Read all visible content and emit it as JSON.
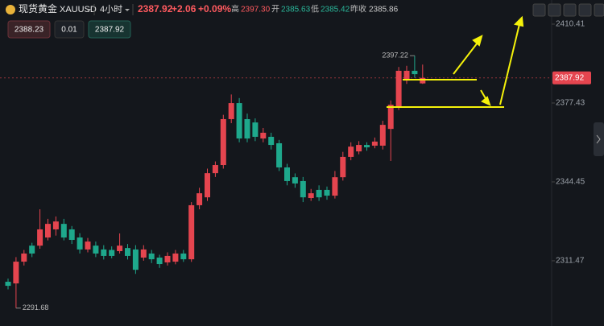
{
  "header": {
    "name": "现货黄金",
    "symbol": "XAUUSD",
    "interval": "4小时",
    "price": "2387.92",
    "change": "+2.06",
    "change_pct": "+0.09%",
    "high_label": "高",
    "high": "2397.30",
    "open_label": "开",
    "open": "2385.63",
    "low_label": "低",
    "low": "2385.42",
    "prev_label": "昨收",
    "prev": "2385.86"
  },
  "order": {
    "sell": "2388.23",
    "lots": "0.01",
    "buy": "2387.92"
  },
  "chart_data": {
    "type": "candlestick",
    "up_color": "#e5454f",
    "down_color": "#1ea88c",
    "open": [
      2302.7,
      2302.0,
      2311.1,
      2317.8,
      2317.8,
      2321.2,
      2324.6,
      2326.9,
      2324.6,
      2321.2,
      2316.2,
      2317.8,
      2316.2,
      2316.0,
      2315.5,
      2316.8,
      2316.2,
      2312.8,
      2314.5,
      2312.8,
      2310.8,
      2311.1,
      2314.5,
      2312.1,
      2334.7,
      2338.0,
      2348.1,
      2351.5,
      2370.7,
      2377.4,
      2370.7,
      2369.3,
      2362.6,
      2363.3,
      2360.6,
      2350.5,
      2346.4,
      2344.8,
      2337.7,
      2341.1,
      2341.1,
      2338.7,
      2346.4,
      2354.9,
      2357.2,
      2359.9,
      2359.6,
      2359.6,
      2366.6,
      2375.7,
      2386.8,
      2390.9,
      2385.63
    ],
    "high": [
      2304,
      2313,
      2316,
      2319,
      2333.0,
      2329,
      2330,
      2329,
      2326,
      2323,
      2321,
      2319.5,
      2318,
      2317.5,
      2322.9,
      2318.5,
      2318,
      2318,
      2316,
      2314,
      2315,
      2316,
      2316,
      2336,
      2342,
      2350,
      2353,
      2372.5,
      2381,
      2379.5,
      2373,
      2371,
      2367,
      2365,
      2362,
      2352,
      2348,
      2346.5,
      2341.5,
      2343,
      2342.5,
      2349,
      2357,
      2361,
      2361.5,
      2361,
      2363,
      2370,
      2378.5,
      2392.5,
      2393,
      2397.22,
      2393.5
    ],
    "low": [
      2299.5,
      2291.68,
      2309.5,
      2313,
      2316.5,
      2320,
      2322,
      2320,
      2318.5,
      2314.5,
      2315,
      2313,
      2312,
      2312.5,
      2314.5,
      2312,
      2306,
      2311.5,
      2310.5,
      2308.5,
      2309.5,
      2310,
      2311,
      2311,
      2333,
      2336.5,
      2346.5,
      2350,
      2369,
      2361,
      2361,
      2361.5,
      2361,
      2358,
      2349,
      2343,
      2342,
      2336,
      2336.5,
      2336.5,
      2337,
      2337.5,
      2345,
      2353.5,
      2356,
      2357.5,
      2358.5,
      2358,
      2353.2,
      2374.5,
      2385.42,
      2388,
      2385.42
    ],
    "close": [
      2301.0,
      2311.1,
      2314.5,
      2314.5,
      2324.6,
      2326.9,
      2327.9,
      2321.2,
      2320.2,
      2316.2,
      2319.5,
      2314.5,
      2313.5,
      2313.5,
      2317.8,
      2313.5,
      2307.7,
      2316.2,
      2312.1,
      2310.1,
      2313.5,
      2314.5,
      2312.1,
      2334.7,
      2339.7,
      2348.1,
      2351.5,
      2370.7,
      2377.4,
      2362.6,
      2362.6,
      2363.3,
      2365.0,
      2359.9,
      2350.5,
      2344.8,
      2343.8,
      2338.0,
      2339.7,
      2338.0,
      2338.7,
      2346.4,
      2354.9,
      2359.2,
      2359.9,
      2358.9,
      2361.3,
      2368.3,
      2376.7,
      2390.9,
      2390.9,
      2389.5,
      2387.92
    ],
    "ylim": [
      2284.2,
      2420.5
    ],
    "yticks": [
      2410.41,
      2377.43,
      2344.45,
      2311.47
    ]
  }
}
